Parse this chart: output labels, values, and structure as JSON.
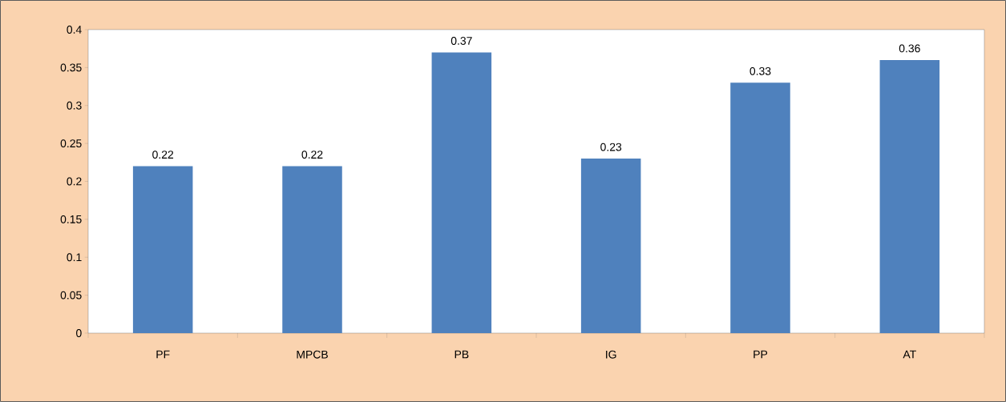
{
  "chart_data": {
    "type": "bar",
    "categories": [
      "PF",
      "MPCB",
      "PB",
      "IG",
      "PP",
      "AT"
    ],
    "values": [
      0.22,
      0.22,
      0.37,
      0.23,
      0.33,
      0.36
    ],
    "color": "#4f81bd",
    "ylim": [
      0,
      0.4
    ],
    "yticks": [
      0,
      0.05,
      0.1,
      0.15,
      0.2,
      0.25,
      0.3,
      0.35,
      0.4
    ],
    "data_labels": true
  }
}
